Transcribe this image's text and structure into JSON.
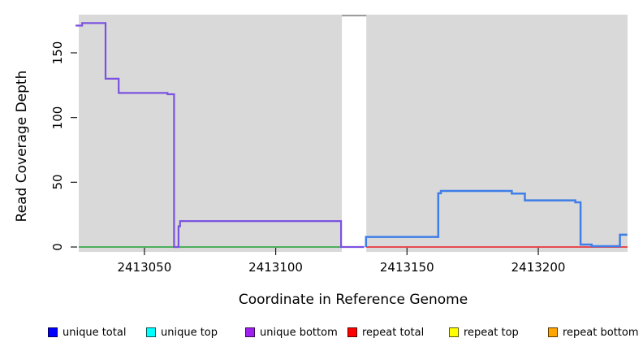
{
  "chart_data": {
    "type": "line",
    "subtype": "step-coverage",
    "title": "",
    "xlabel": "Coordinate in Reference Genome",
    "ylabel": "Read Coverage Depth",
    "xlim": [
      2413025,
      2413234
    ],
    "ylim": [
      0,
      179
    ],
    "x_ticks": [
      2413050,
      2413100,
      2413150,
      2413200
    ],
    "y_ticks": [
      0,
      50,
      100,
      150
    ],
    "grid": false,
    "legend_position": "bottom",
    "plot_background": "#d9d9d9",
    "masked_region": {
      "x_start": 2413125.2,
      "x_end": 2413134.5,
      "fill": "#ffffff",
      "top_border": "#8c8c8c"
    },
    "series": [
      {
        "name": "baseline-left-green",
        "color": "#4daf5b",
        "width": 2,
        "points": [
          [
            2413025,
            0
          ],
          [
            2413133.7,
            0
          ]
        ]
      },
      {
        "name": "repeat-total-baseline",
        "color": "#e84a50",
        "width": 2,
        "points": [
          [
            2413134.4,
            0
          ],
          [
            2413234,
            0
          ]
        ]
      },
      {
        "name": "unique-bottom-left-region",
        "color": "#7b52e0",
        "width": 2.2,
        "points": [
          [
            2413023.8,
            171
          ],
          [
            2413026.3,
            171
          ],
          [
            2413026.3,
            173
          ],
          [
            2413035.2,
            173
          ],
          [
            2413035.2,
            130
          ],
          [
            2413040.2,
            130
          ],
          [
            2413040.2,
            119
          ],
          [
            2413058.8,
            119
          ],
          [
            2413058.8,
            118
          ],
          [
            2413061.3,
            118
          ],
          [
            2413061.3,
            0
          ],
          [
            2413063.0,
            0
          ],
          [
            2413063.0,
            16
          ],
          [
            2413063.6,
            16
          ],
          [
            2413063.6,
            20
          ],
          [
            2413124.9,
            20
          ],
          [
            2413124.9,
            0
          ],
          [
            2413133.7,
            0
          ]
        ]
      },
      {
        "name": "unique-total-right-region",
        "color": "#3f7ee8",
        "width": 2.5,
        "points": [
          [
            2413134.4,
            0
          ],
          [
            2413134.4,
            7.8
          ],
          [
            2413161.9,
            7.8
          ],
          [
            2413161.9,
            41.5
          ],
          [
            2413162.9,
            41.5
          ],
          [
            2413162.9,
            43.3
          ],
          [
            2413189.9,
            43.3
          ],
          [
            2413189.9,
            41.3
          ],
          [
            2413194.9,
            41.3
          ],
          [
            2413194.9,
            36
          ],
          [
            2413214.1,
            36
          ],
          [
            2413214.1,
            34.5
          ],
          [
            2413216.1,
            34.5
          ],
          [
            2413216.1,
            1.9
          ],
          [
            2413220.3,
            1.9
          ],
          [
            2413220.3,
            0.6
          ],
          [
            2413231.1,
            0.6
          ],
          [
            2413231.1,
            9.5
          ],
          [
            2413233.9,
            9.5
          ]
        ]
      }
    ]
  },
  "legend": {
    "items": [
      {
        "label": "unique total",
        "color": "#0000ff"
      },
      {
        "label": "unique top",
        "color": "#00ffff"
      },
      {
        "label": "unique bottom",
        "color": "#a020f0"
      },
      {
        "label": "repeat total",
        "color": "#ff0000"
      },
      {
        "label": "repeat top",
        "color": "#ffff00"
      },
      {
        "label": "repeat bottom",
        "color": "#ffa500"
      }
    ]
  }
}
